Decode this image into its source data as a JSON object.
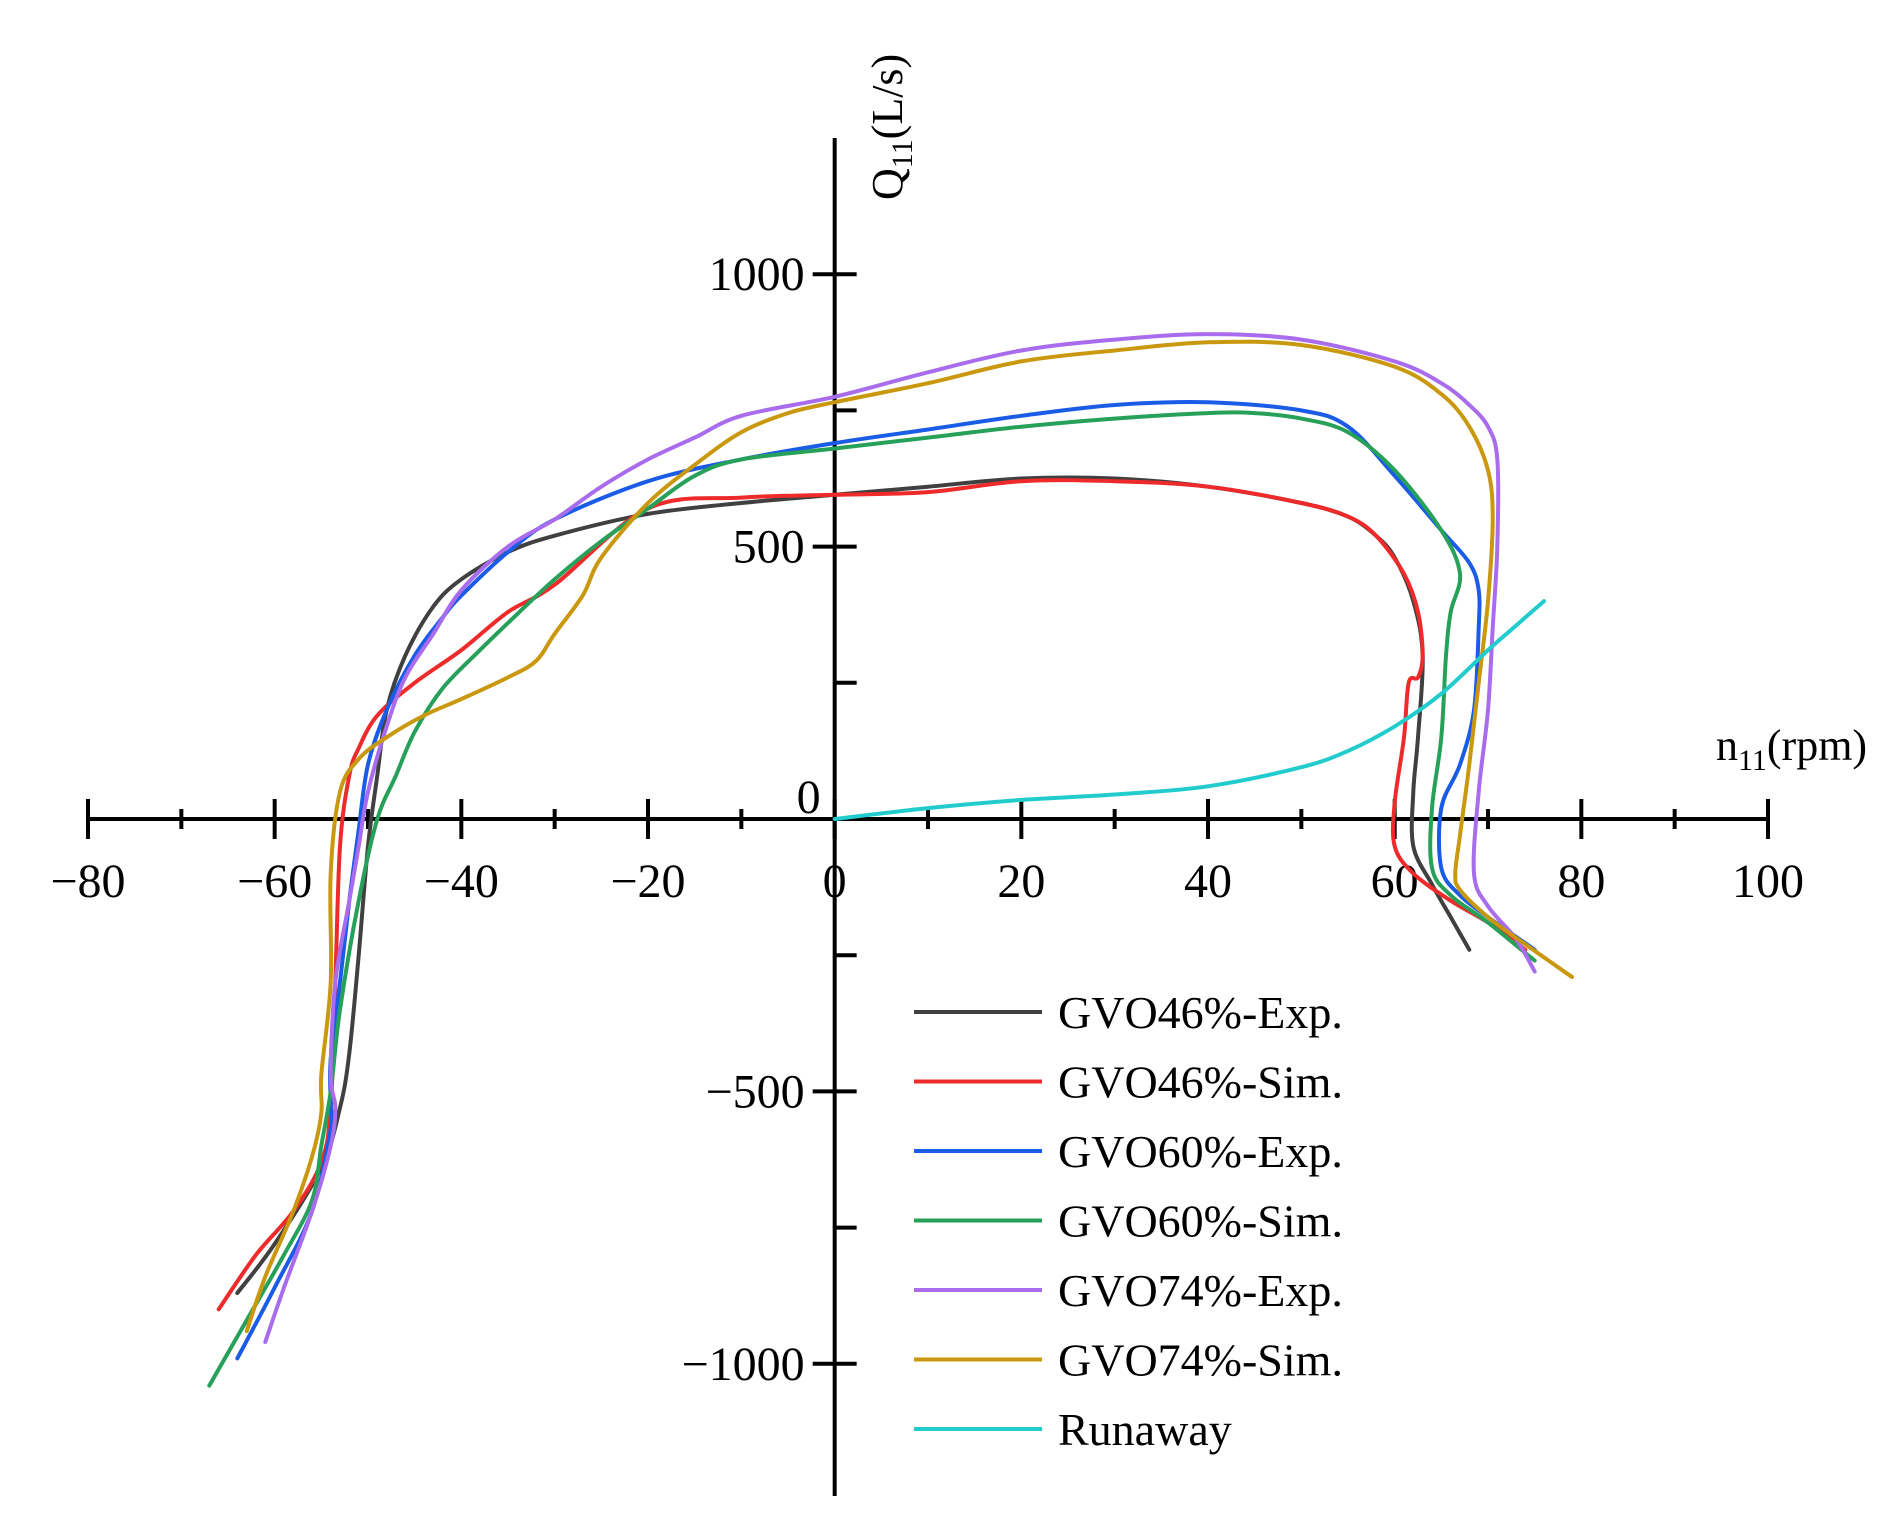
{
  "chart_data": {
    "type": "line",
    "title": "",
    "xlabel": {
      "main": "n",
      "sub": "11",
      "unit": "(rpm)"
    },
    "ylabel": {
      "main": "Q",
      "sub": "11",
      "unit": "(L/s)"
    },
    "xlim": [
      -80,
      100
    ],
    "ylim": [
      -1250,
      1250
    ],
    "x_ticks": [
      -80,
      -60,
      -40,
      -20,
      0,
      20,
      40,
      60,
      80,
      100
    ],
    "x_tick_labels": [
      "−80",
      "−60",
      "−40",
      "−20",
      "0",
      "20",
      "40",
      "60",
      "80",
      "100"
    ],
    "x_minor_step": 10,
    "y_ticks": [
      -1000,
      -500,
      0,
      500,
      1000
    ],
    "y_tick_labels": [
      "−1000",
      "−500",
      "0",
      "500",
      "1000"
    ],
    "y_minor_step": 250,
    "grid": false,
    "legend_position": "bottom-right",
    "series": [
      {
        "name": "GVO46%-Exp.",
        "color": "#404040",
        "points": [
          [
            -64,
            -870
          ],
          [
            -60,
            -780
          ],
          [
            -55,
            -640
          ],
          [
            -53,
            -530
          ],
          [
            -52,
            -430
          ],
          [
            -51,
            -250
          ],
          [
            -50,
            -50
          ],
          [
            -49,
            80
          ],
          [
            -48,
            200
          ],
          [
            -46,
            300
          ],
          [
            -43,
            390
          ],
          [
            -40,
            440
          ],
          [
            -35,
            490
          ],
          [
            -30,
            520
          ],
          [
            -20,
            560
          ],
          [
            -10,
            580
          ],
          [
            0,
            595
          ],
          [
            10,
            610
          ],
          [
            20,
            625
          ],
          [
            30,
            625
          ],
          [
            40,
            610
          ],
          [
            50,
            580
          ],
          [
            55,
            555
          ],
          [
            58,
            520
          ],
          [
            60,
            480
          ],
          [
            62,
            400
          ],
          [
            63,
            300
          ],
          [
            62.5,
            150
          ],
          [
            62,
            50
          ],
          [
            62,
            -50
          ],
          [
            64,
            -120
          ],
          [
            66,
            -180
          ],
          [
            68,
            -240
          ]
        ]
      },
      {
        "name": "GVO46%-Sim.",
        "color": "#ee2a2a",
        "points": [
          [
            -66,
            -900
          ],
          [
            -62,
            -800
          ],
          [
            -58,
            -720
          ],
          [
            -55,
            -630
          ],
          [
            -54,
            -530
          ],
          [
            -53.5,
            -300
          ],
          [
            -53,
            -50
          ],
          [
            -52,
            80
          ],
          [
            -51,
            130
          ],
          [
            -49,
            190
          ],
          [
            -45,
            250
          ],
          [
            -40,
            310
          ],
          [
            -35,
            380
          ],
          [
            -30,
            430
          ],
          [
            -20,
            570
          ],
          [
            -10,
            590
          ],
          [
            0,
            595
          ],
          [
            10,
            600
          ],
          [
            20,
            620
          ],
          [
            30,
            620
          ],
          [
            40,
            610
          ],
          [
            50,
            580
          ],
          [
            55,
            555
          ],
          [
            58,
            520
          ],
          [
            61,
            450
          ],
          [
            62.5,
            380
          ],
          [
            63,
            300
          ],
          [
            62.5,
            260
          ],
          [
            61.5,
            250
          ],
          [
            61,
            150
          ],
          [
            60,
            30
          ],
          [
            60,
            -50
          ],
          [
            62,
            -100
          ],
          [
            66,
            -150
          ],
          [
            70,
            -190
          ],
          [
            74,
            -240
          ]
        ]
      },
      {
        "name": "GVO60%-Exp.",
        "color": "#1a5ce6",
        "points": [
          [
            -64,
            -990
          ],
          [
            -60,
            -860
          ],
          [
            -56,
            -720
          ],
          [
            -54,
            -570
          ],
          [
            -54,
            -520
          ],
          [
            -54,
            -440
          ],
          [
            -53,
            -300
          ],
          [
            -52,
            -150
          ],
          [
            -51,
            -20
          ],
          [
            -50,
            100
          ],
          [
            -48,
            200
          ],
          [
            -45,
            300
          ],
          [
            -42,
            370
          ],
          [
            -40,
            410
          ],
          [
            -35,
            490
          ],
          [
            -30,
            550
          ],
          [
            -20,
            620
          ],
          [
            -10,
            660
          ],
          [
            0,
            690
          ],
          [
            10,
            715
          ],
          [
            20,
            740
          ],
          [
            30,
            760
          ],
          [
            40,
            765
          ],
          [
            50,
            750
          ],
          [
            55,
            720
          ],
          [
            60,
            630
          ],
          [
            65,
            530
          ],
          [
            68,
            470
          ],
          [
            69,
            420
          ],
          [
            69,
            350
          ],
          [
            68.5,
            200
          ],
          [
            67,
            100
          ],
          [
            65,
            20
          ],
          [
            65,
            -90
          ],
          [
            67,
            -140
          ],
          [
            70,
            -180
          ],
          [
            75,
            -240
          ]
        ]
      },
      {
        "name": "GVO60%-Sim.",
        "color": "#27a05a",
        "points": [
          [
            -67,
            -1040
          ],
          [
            -63,
            -920
          ],
          [
            -59,
            -800
          ],
          [
            -56,
            -700
          ],
          [
            -55,
            -600
          ],
          [
            -54,
            -500
          ],
          [
            -53,
            -350
          ],
          [
            -51,
            -150
          ],
          [
            -49,
            0
          ],
          [
            -47,
            80
          ],
          [
            -45,
            160
          ],
          [
            -42,
            240
          ],
          [
            -38,
            310
          ],
          [
            -35,
            360
          ],
          [
            -30,
            440
          ],
          [
            -25,
            510
          ],
          [
            -20,
            570
          ],
          [
            -15,
            630
          ],
          [
            -10,
            660
          ],
          [
            0,
            680
          ],
          [
            10,
            700
          ],
          [
            20,
            720
          ],
          [
            30,
            735
          ],
          [
            40,
            745
          ],
          [
            45,
            745
          ],
          [
            50,
            735
          ],
          [
            55,
            710
          ],
          [
            60,
            640
          ],
          [
            65,
            530
          ],
          [
            67,
            450
          ],
          [
            66,
            380
          ],
          [
            65.5,
            300
          ],
          [
            65,
            150
          ],
          [
            64,
            20
          ],
          [
            64,
            -90
          ],
          [
            66,
            -140
          ],
          [
            70,
            -190
          ],
          [
            75,
            -260
          ]
        ]
      },
      {
        "name": "GVO74%-Exp.",
        "color": "#a86cec",
        "points": [
          [
            -61,
            -960
          ],
          [
            -59,
            -860
          ],
          [
            -56,
            -720
          ],
          [
            -54,
            -600
          ],
          [
            -53.5,
            -530
          ],
          [
            -54,
            -470
          ],
          [
            -53.5,
            -300
          ],
          [
            -52,
            -150
          ],
          [
            -51,
            -50
          ],
          [
            -50,
            50
          ],
          [
            -48,
            170
          ],
          [
            -46,
            260
          ],
          [
            -43,
            340
          ],
          [
            -40,
            420
          ],
          [
            -35,
            500
          ],
          [
            -30,
            550
          ],
          [
            -25,
            610
          ],
          [
            -20,
            660
          ],
          [
            -15,
            700
          ],
          [
            -10,
            740
          ],
          [
            0,
            775
          ],
          [
            10,
            820
          ],
          [
            20,
            860
          ],
          [
            30,
            880
          ],
          [
            40,
            890
          ],
          [
            50,
            880
          ],
          [
            60,
            840
          ],
          [
            65,
            800
          ],
          [
            68,
            760
          ],
          [
            70,
            720
          ],
          [
            71,
            660
          ],
          [
            71,
            500
          ],
          [
            70.5,
            350
          ],
          [
            70,
            200
          ],
          [
            69,
            50
          ],
          [
            68.5,
            -100
          ],
          [
            70,
            -160
          ],
          [
            73,
            -220
          ],
          [
            75,
            -280
          ]
        ]
      },
      {
        "name": "GVO74%-Sim.",
        "color": "#c9980f",
        "points": [
          [
            -63,
            -940
          ],
          [
            -61,
            -840
          ],
          [
            -58,
            -720
          ],
          [
            -56,
            -620
          ],
          [
            -55,
            -540
          ],
          [
            -55,
            -470
          ],
          [
            -54,
            -300
          ],
          [
            -54,
            -100
          ],
          [
            -53,
            50
          ],
          [
            -51,
            110
          ],
          [
            -48,
            150
          ],
          [
            -44,
            190
          ],
          [
            -40,
            220
          ],
          [
            -35,
            260
          ],
          [
            -32,
            290
          ],
          [
            -30,
            340
          ],
          [
            -27,
            410
          ],
          [
            -25,
            480
          ],
          [
            -20,
            580
          ],
          [
            -15,
            650
          ],
          [
            -10,
            710
          ],
          [
            -5,
            745
          ],
          [
            0,
            765
          ],
          [
            10,
            800
          ],
          [
            20,
            840
          ],
          [
            30,
            860
          ],
          [
            40,
            875
          ],
          [
            50,
            870
          ],
          [
            60,
            830
          ],
          [
            65,
            780
          ],
          [
            68,
            720
          ],
          [
            70,
            640
          ],
          [
            70.5,
            550
          ],
          [
            70,
            400
          ],
          [
            69,
            250
          ],
          [
            68,
            100
          ],
          [
            67,
            -30
          ],
          [
            66.5,
            -100
          ],
          [
            67,
            -130
          ],
          [
            70,
            -180
          ],
          [
            74,
            -230
          ],
          [
            79,
            -290
          ]
        ]
      },
      {
        "name": "Runaway",
        "color": "#22cccc",
        "points": [
          [
            0,
            0
          ],
          [
            10,
            20
          ],
          [
            20,
            35
          ],
          [
            30,
            45
          ],
          [
            40,
            60
          ],
          [
            50,
            95
          ],
          [
            55,
            125
          ],
          [
            60,
            170
          ],
          [
            65,
            230
          ],
          [
            70,
            310
          ],
          [
            73,
            355
          ],
          [
            76,
            400
          ]
        ]
      }
    ]
  }
}
